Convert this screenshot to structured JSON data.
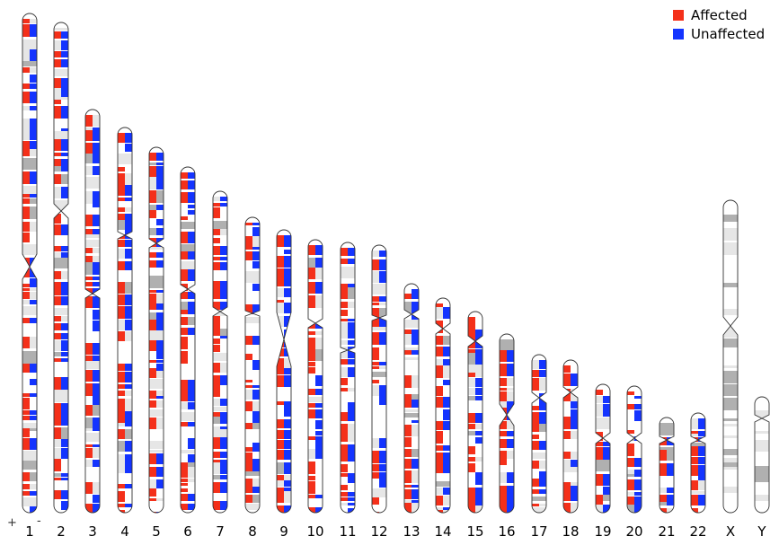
{
  "legend": {
    "items": [
      {
        "label": "Affected",
        "color": "#f4301a"
      },
      {
        "label": "Unaffected",
        "color": "#1434ff"
      }
    ]
  },
  "strand_labels": {
    "plus": "+",
    "minus": "-"
  },
  "colors": {
    "affected": "#f4301a",
    "unaffected": "#1434ff",
    "band_light": "#e6e6e6",
    "band_dark": "#b0b0b0",
    "outline": "#333333"
  },
  "chromosomes": [
    {
      "label": "1"
    },
    {
      "label": "2"
    },
    {
      "label": "3"
    },
    {
      "label": "4"
    },
    {
      "label": "5"
    },
    {
      "label": "6"
    },
    {
      "label": "7"
    },
    {
      "label": "8"
    },
    {
      "label": "9"
    },
    {
      "label": "10"
    },
    {
      "label": "11"
    },
    {
      "label": "12"
    },
    {
      "label": "13"
    },
    {
      "label": "14"
    },
    {
      "label": "15"
    },
    {
      "label": "16"
    },
    {
      "label": "17"
    },
    {
      "label": "18"
    },
    {
      "label": "19"
    },
    {
      "label": "20"
    },
    {
      "label": "21"
    },
    {
      "label": "22"
    },
    {
      "label": "X"
    },
    {
      "label": "Y"
    }
  ]
}
